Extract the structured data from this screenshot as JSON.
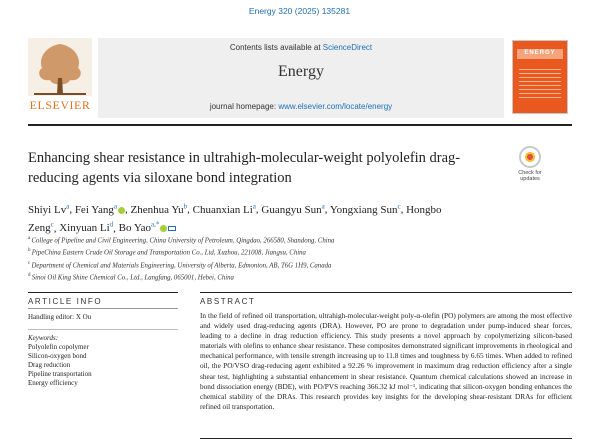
{
  "header": {
    "journal_ref": "Energy 320 (2025) 135281",
    "contents_prefix": "Contents lists available at ",
    "contents_link": "ScienceDirect",
    "journal_title": "Energy",
    "homepage_prefix": "journal homepage: ",
    "homepage_url": "www.elsevier.com/locate/energy",
    "publisher_name": "ELSEVIER",
    "cover_title": "ENERGY",
    "check_updates": "Check for updates"
  },
  "article": {
    "title": "Enhancing shear resistance in ultrahigh-molecular-weight polyolefin drag-reducing agents via siloxane bond integration",
    "authors": [
      {
        "name": "Shiyi Lv",
        "sup": "a",
        "orcid": false,
        "corr": false
      },
      {
        "name": "Fei Yang",
        "sup": "a",
        "orcid": true,
        "corr": false
      },
      {
        "name": "Zhenhua Yu",
        "sup": "b",
        "orcid": false,
        "corr": false
      },
      {
        "name": "Chuanxian Li",
        "sup": "a",
        "orcid": false,
        "corr": false
      },
      {
        "name": "Guangyu Sun",
        "sup": "a",
        "orcid": false,
        "corr": false
      },
      {
        "name": "Yongxiang Sun",
        "sup": "c",
        "orcid": false,
        "corr": false
      },
      {
        "name": "Hongbo Zeng",
        "sup": "c",
        "orcid": false,
        "corr": false
      },
      {
        "name": "Xinyuan Li",
        "sup": "d",
        "orcid": false,
        "corr": false
      },
      {
        "name": "Bo Yao",
        "sup": "a,*",
        "orcid": true,
        "corr": true
      }
    ],
    "affiliations": [
      {
        "sup": "a",
        "text": "College of Pipeline and Civil Engineering, China University of Petroleum, Qingdao, 266580, Shandong, China"
      },
      {
        "sup": "b",
        "text": "PipeChina Eastern Crude Oil Storage and Transportation Co., Ltd, Xuzhou, 221008, Jiangsu, China"
      },
      {
        "sup": "c",
        "text": "Department of Chemical and Materials Engineering, University of Alberta, Edmonton, AB, T6G 1H9, Canada"
      },
      {
        "sup": "d",
        "text": "Sinoi Oil King Shine Chemical Co., Ltd., Langfang, 065001, Hebei, China"
      }
    ]
  },
  "article_info": {
    "heading": "ARTICLE INFO",
    "handling_editor": "Handling editor: X Ou",
    "keywords_label": "Keywords:",
    "keywords": [
      "Polyolefin copolymer",
      "Silicon-oxygen bond",
      "Drag reduction",
      "Pipeline transportation",
      "Energy efficiency"
    ]
  },
  "abstract": {
    "heading": "ABSTRACT",
    "text": "In the field of refined oil transportation, ultrahigh-molecular-weight poly-α-olefin (PO) polymers are among the most effective and widely used drag-reducing agents (DRA). However, PO are prone to degradation under pump-induced shear forces, leading to a decline in drag reduction efficiency. This study presents a novel approach by copolymerizing silicon-based materials with olefins to enhance shear resistance. These composites demonstrated significant improvements in rheological and mechanical performance, with tensile strength increasing up to 11.8 times and toughness by 6.65 times. When added to refined oil, the PO/VSO drag-reducing agent exhibited a 92.26 % improvement in maximum drag reduction efficiency after a single shear test, highlighting a substantial enhancement in shear resistance. Quantum chemical calculations showed an increase in bond dissociation energy (BDE), with PO/PVS reaching 366.32 kJ mol⁻¹, indicating that silicon-oxygen bonding enhances the chemical stability of the DRAs. This research provides key insights for the developing shear-resistant DRAs for efficient refined oil transportation."
  },
  "colors": {
    "link": "#1f6fb2",
    "elsevier": "#e9711c",
    "header_bg": "#efefef",
    "cover": "#e8581f"
  }
}
